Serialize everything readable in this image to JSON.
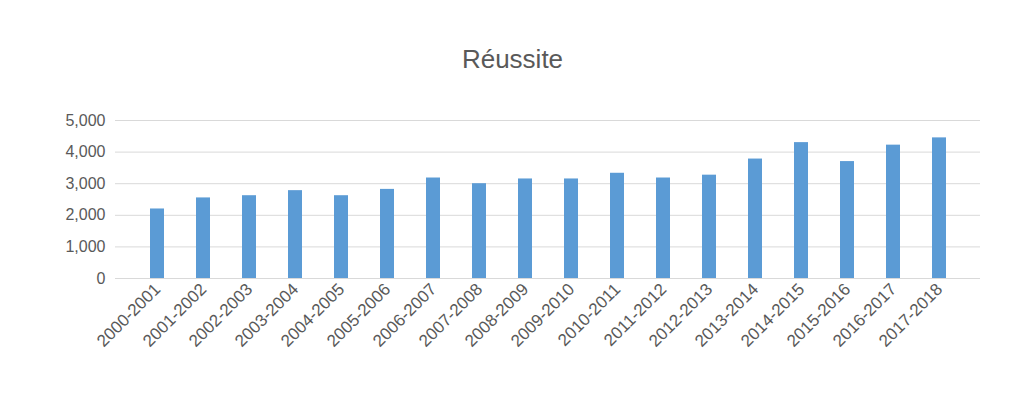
{
  "chart_data": {
    "type": "bar",
    "title": "Réussite",
    "categories": [
      "2000-2001",
      "2001-2002",
      "2002-2003",
      "2003-2004",
      "2004-2005",
      "2005-2006",
      "2006-2007",
      "2007-2008",
      "2008-2009",
      "2009-2010",
      "2010-2011",
      "2011-2012",
      "2012-2013",
      "2013-2014",
      "2014-2015",
      "2015-2016",
      "2016-2017",
      "2017-2018"
    ],
    "values": [
      2200,
      2550,
      2620,
      2780,
      2620,
      2820,
      3180,
      3000,
      3150,
      3150,
      3330,
      3180,
      3270,
      3780,
      4300,
      3700,
      4220,
      4450
    ],
    "color": "#5b9bd5",
    "ylim": [
      0,
      5000
    ],
    "yticks": [
      0,
      1000,
      2000,
      3000,
      4000,
      5000
    ],
    "grid": true
  }
}
